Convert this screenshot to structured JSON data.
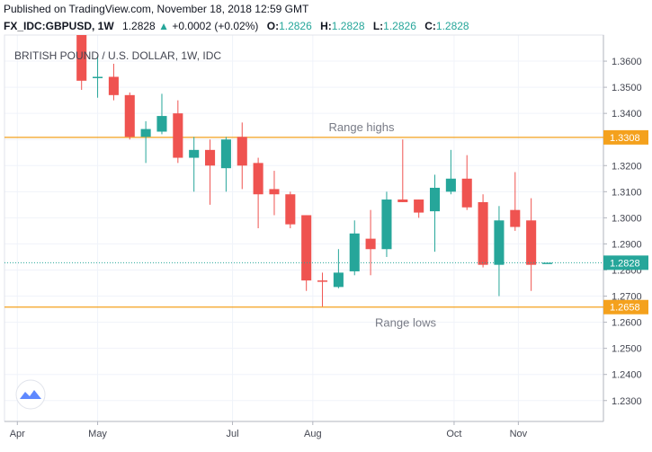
{
  "header": {
    "published": "Published on TradingView.com, November 18, 2018 12:59 GMT",
    "symbol": "FX_IDC:GBPUSD, 1W",
    "last": "1.2828",
    "change_arrow": "▲",
    "change": "+0.0002 (+0.02%)",
    "open_label": "O:",
    "open": "1.2826",
    "high_label": "H:",
    "high": "1.2828",
    "low_label": "L:",
    "low": "1.2826",
    "close_label": "C:",
    "close": "1.2828"
  },
  "colors": {
    "up": "#26a69a",
    "down": "#ef5350",
    "hline": "#f4a11d",
    "grid": "#f0f3fa",
    "last_price": "#26a69a"
  },
  "icons": {
    "logo": "tradingview-logo-icon"
  },
  "chart_data": {
    "type": "candlestick",
    "title": "BRITISH POUND / U.S. DOLLAR, 1W, IDC",
    "ylim": [
      1.222,
      1.37
    ],
    "y_ticks": [
      "1.3600",
      "1.3500",
      "1.3400",
      "1.3300",
      "1.3200",
      "1.3100",
      "1.3000",
      "1.2900",
      "1.2800",
      "1.2700",
      "1.2600",
      "1.2500",
      "1.2400",
      "1.2300"
    ],
    "y_tick_values": [
      1.36,
      1.35,
      1.34,
      1.33,
      1.32,
      1.31,
      1.3,
      1.29,
      1.28,
      1.27,
      1.26,
      1.25,
      1.24,
      1.23
    ],
    "x_labels": [
      {
        "label": "Apr",
        "index": -4
      },
      {
        "label": "May",
        "index": 1
      },
      {
        "label": "Jul",
        "index": 9.4
      },
      {
        "label": "Aug",
        "index": 14.4
      },
      {
        "label": "Oct",
        "index": 23.2
      },
      {
        "label": "Nov",
        "index": 27.2
      }
    ],
    "x_index_range": [
      -4.8,
      32.5
    ],
    "candles": [
      {
        "o": 1.37,
        "h": 1.37,
        "l": 1.349,
        "c": 1.3525
      },
      {
        "o": 1.3535,
        "h": 1.362,
        "l": 1.346,
        "c": 1.354
      },
      {
        "o": 1.354,
        "h": 1.359,
        "l": 1.345,
        "c": 1.347
      },
      {
        "o": 1.347,
        "h": 1.348,
        "l": 1.33,
        "c": 1.331
      },
      {
        "o": 1.331,
        "h": 1.337,
        "l": 1.321,
        "c": 1.334
      },
      {
        "o": 1.333,
        "h": 1.3475,
        "l": 1.332,
        "c": 1.339
      },
      {
        "o": 1.34,
        "h": 1.345,
        "l": 1.321,
        "c": 1.323
      },
      {
        "o": 1.323,
        "h": 1.331,
        "l": 1.31,
        "c": 1.326
      },
      {
        "o": 1.326,
        "h": 1.33,
        "l": 1.305,
        "c": 1.32
      },
      {
        "o": 1.319,
        "h": 1.331,
        "l": 1.31,
        "c": 1.33
      },
      {
        "o": 1.331,
        "h": 1.3365,
        "l": 1.311,
        "c": 1.32
      },
      {
        "o": 1.321,
        "h": 1.323,
        "l": 1.296,
        "c": 1.309
      },
      {
        "o": 1.311,
        "h": 1.318,
        "l": 1.301,
        "c": 1.309
      },
      {
        "o": 1.309,
        "h": 1.31,
        "l": 1.296,
        "c": 1.2975
      },
      {
        "o": 1.301,
        "h": 1.301,
        "l": 1.272,
        "c": 1.276
      },
      {
        "o": 1.276,
        "h": 1.279,
        "l": 1.266,
        "c": 1.2755
      },
      {
        "o": 1.2735,
        "h": 1.288,
        "l": 1.273,
        "c": 1.279
      },
      {
        "o": 1.2795,
        "h": 1.299,
        "l": 1.278,
        "c": 1.294
      },
      {
        "o": 1.292,
        "h": 1.303,
        "l": 1.278,
        "c": 1.288
      },
      {
        "o": 1.288,
        "h": 1.31,
        "l": 1.285,
        "c": 1.307
      },
      {
        "o": 1.307,
        "h": 1.33,
        "l": 1.306,
        "c": 1.306
      },
      {
        "o": 1.307,
        "h": 1.307,
        "l": 1.3,
        "c": 1.302
      },
      {
        "o": 1.3025,
        "h": 1.3165,
        "l": 1.287,
        "c": 1.3115
      },
      {
        "o": 1.31,
        "h": 1.326,
        "l": 1.309,
        "c": 1.315
      },
      {
        "o": 1.315,
        "h": 1.324,
        "l": 1.303,
        "c": 1.304
      },
      {
        "o": 1.306,
        "h": 1.309,
        "l": 1.281,
        "c": 1.282
      },
      {
        "o": 1.282,
        "h": 1.3045,
        "l": 1.27,
        "c": 1.299
      },
      {
        "o": 1.303,
        "h": 1.3175,
        "l": 1.295,
        "c": 1.2965
      },
      {
        "o": 1.299,
        "h": 1.3075,
        "l": 1.272,
        "c": 1.282
      },
      {
        "o": 1.2826,
        "h": 1.2828,
        "l": 1.2826,
        "c": 1.2828
      }
    ],
    "horizontal_lines": [
      {
        "value": 1.3308,
        "label": "Range highs",
        "price_label": "1.3308"
      },
      {
        "value": 1.2658,
        "label": "Range lows",
        "price_label": "1.2658"
      }
    ],
    "last_price": {
      "value": 1.2828,
      "label": "1.2828"
    }
  }
}
